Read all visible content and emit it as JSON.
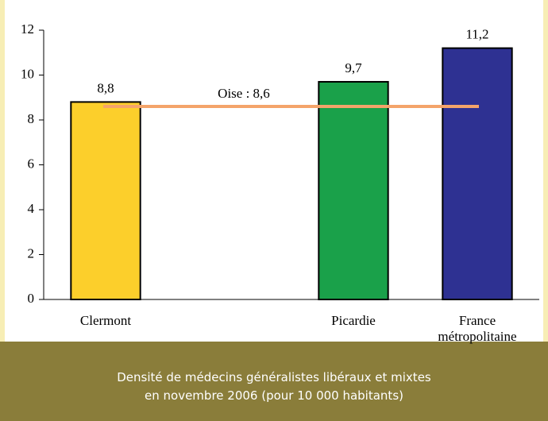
{
  "chart_data": {
    "type": "bar",
    "categories": [
      "Clermont",
      null,
      "Picardie",
      "France métropolitaine"
    ],
    "values": [
      8.8,
      null,
      9.7,
      11.2
    ],
    "value_labels": [
      "8,8",
      null,
      "9,7",
      "11,2"
    ],
    "colors": [
      "#fccf2b",
      null,
      "#1aa14a",
      "#2e3192"
    ],
    "ylim": [
      0,
      12
    ],
    "yticks": [
      0,
      2,
      4,
      6,
      8,
      10,
      12
    ],
    "reference_line": {
      "value": 8.6,
      "label": "Oise : 8,6",
      "color": "#f4a46a"
    },
    "caption": [
      "Densité de médecins généralistes libéraux et mixtes",
      "en novembre 2006 (pour 10 000 habitants)"
    ]
  }
}
